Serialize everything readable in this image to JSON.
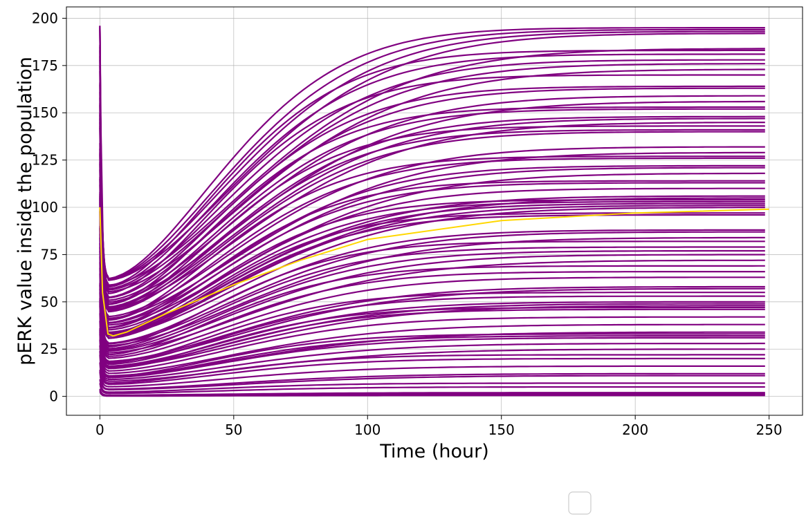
{
  "chart_data": {
    "type": "line",
    "title": "",
    "xlabel": "Time (hour)",
    "ylabel": "pERK value inside the population",
    "xlim": [
      -12.5,
      262.5
    ],
    "ylim": [
      -10,
      206
    ],
    "xticks": [
      0,
      50,
      100,
      150,
      200,
      250
    ],
    "yticks": [
      0,
      25,
      50,
      75,
      100,
      125,
      150,
      175,
      200
    ],
    "grid": true,
    "legend": "empty legend box, bottom-center below plot",
    "colors": {
      "population": "#800080",
      "highlight": "#ffd700"
    },
    "series_shape": {
      "x_range": [
        0,
        250
      ],
      "initial_peak": 196,
      "description": "each trajectory starts near its initial value, drops sharply within ~3 h to a minimum, then rises sigmoidally to a plateau"
    },
    "population_plateaus": [
      195,
      194,
      193,
      192,
      184,
      183,
      181,
      178,
      176,
      173,
      170,
      164,
      163,
      159,
      156,
      153,
      152,
      148,
      147,
      145,
      143,
      141,
      140,
      132,
      129,
      127,
      126,
      122,
      121,
      118,
      114,
      113,
      110,
      106,
      105,
      104,
      103,
      102,
      101,
      100,
      97,
      96,
      88,
      87,
      84,
      82,
      79,
      77,
      75,
      72,
      69,
      66,
      63,
      58,
      57,
      55,
      53,
      50,
      49,
      48,
      47,
      46,
      42,
      38,
      34,
      33,
      32,
      31,
      28,
      25,
      22,
      20,
      16,
      12,
      11,
      7,
      5,
      2,
      1.5,
      1,
      0.5
    ],
    "series": [
      {
        "name": "",
        "color": "#ffd700",
        "x": [
          0,
          1,
          3,
          5,
          10,
          25,
          50,
          75,
          100,
          150,
          200,
          250
        ],
        "values": [
          100,
          55,
          33,
          32,
          34,
          44,
          59,
          72,
          83,
          93,
          97,
          99
        ]
      }
    ]
  }
}
